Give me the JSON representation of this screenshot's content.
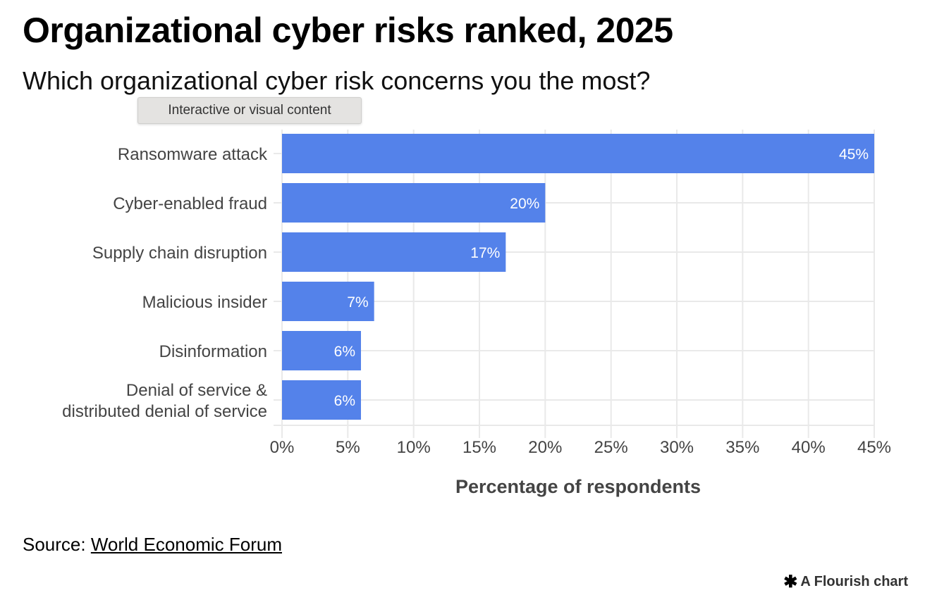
{
  "header": {
    "title": "Organizational cyber risks ranked, 2025",
    "subtitle": "Which organizational cyber risk concerns you the most?"
  },
  "tooltip": {
    "text": "Interactive or visual content"
  },
  "chart_data": {
    "type": "bar",
    "orientation": "horizontal",
    "title": "Organizational cyber risks ranked, 2025",
    "subtitle": "Which organizational cyber risk concerns you the most?",
    "categories": [
      [
        "Ransomware attack"
      ],
      [
        "Cyber-enabled fraud"
      ],
      [
        "Supply chain disruption"
      ],
      [
        "Malicious insider"
      ],
      [
        "Disinformation"
      ],
      [
        "Denial of service &",
        "distributed denial of service"
      ]
    ],
    "values": [
      45,
      20,
      17,
      7,
      6,
      6
    ],
    "value_labels": [
      "45%",
      "20%",
      "17%",
      "7%",
      "6%",
      "6%"
    ],
    "xlabel": "Percentage of respondents",
    "ylabel": "",
    "xlim": [
      0,
      45
    ],
    "xticks": [
      0,
      5,
      10,
      15,
      20,
      25,
      30,
      35,
      40,
      45
    ],
    "xtick_labels": [
      "0%",
      "5%",
      "10%",
      "15%",
      "20%",
      "25%",
      "30%",
      "35%",
      "40%",
      "45%"
    ],
    "grid": true,
    "legend": "none",
    "bar_color": "#4e7ee9"
  },
  "footer": {
    "source_prefix": "Source:",
    "source_link": "World Economic Forum",
    "credit": "A Flourish chart",
    "credit_icon": "asterisk-icon"
  }
}
